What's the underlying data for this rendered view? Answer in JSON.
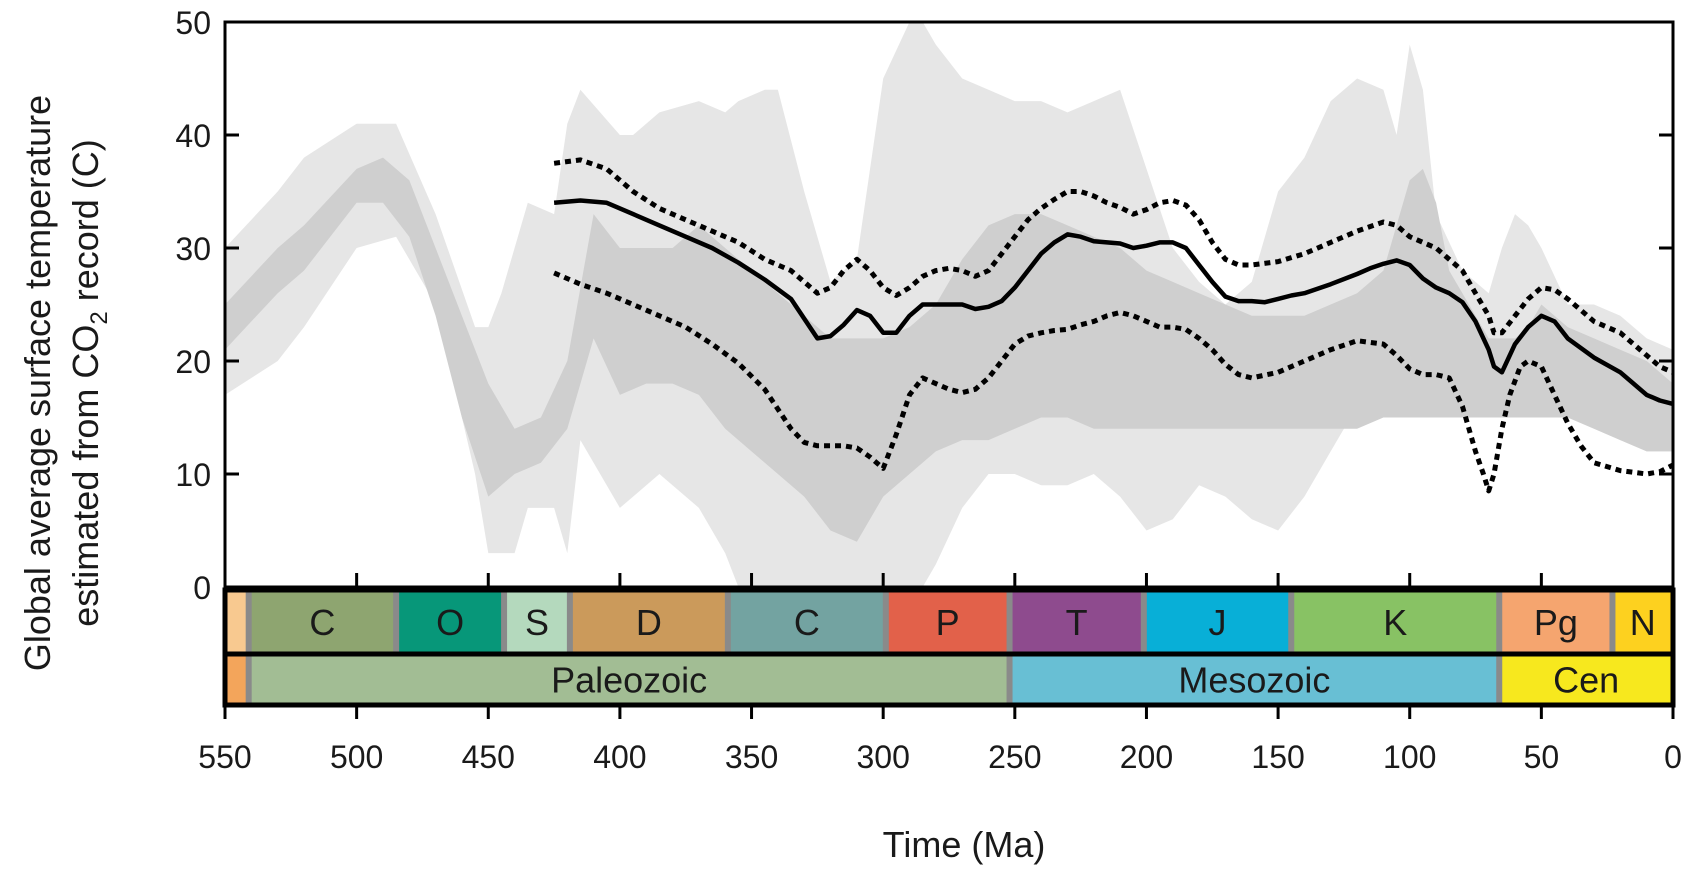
{
  "chart_data": {
    "type": "line",
    "xlabel": "Time (Ma)",
    "ylabel_line1": "Global average surface temperature",
    "ylabel_line2_pre": "estimated from CO",
    "ylabel_line2_sub": "2",
    "ylabel_line2_post": " record (C)",
    "xlim": [
      550,
      0
    ],
    "ylim": [
      0,
      50
    ],
    "x_ticks": [
      550,
      500,
      450,
      400,
      350,
      300,
      250,
      200,
      150,
      100,
      50,
      0
    ],
    "y_ticks": [
      0,
      10,
      20,
      30,
      40,
      50
    ],
    "grid": false,
    "bands": {
      "outer": {
        "color": "#e6e6e6",
        "x": [
          550,
          530,
          520,
          500,
          485,
          470,
          455,
          450,
          445,
          440,
          435,
          425,
          420,
          415,
          400,
          395,
          385,
          370,
          360,
          355,
          345,
          340,
          330,
          320,
          310,
          300,
          290,
          285,
          280,
          270,
          260,
          250,
          240,
          230,
          220,
          210,
          200,
          190,
          180,
          170,
          160,
          150,
          140,
          130,
          120,
          110,
          105,
          100,
          95,
          90,
          80,
          70,
          65,
          60,
          55,
          50,
          40,
          30,
          20,
          10,
          0
        ],
        "upper": [
          30,
          35,
          38,
          41,
          41,
          33,
          23,
          23,
          26,
          30,
          34,
          33,
          41,
          44,
          40,
          40,
          42,
          43,
          42,
          43,
          44,
          44,
          35,
          27,
          29,
          45,
          50,
          50,
          48,
          45,
          44,
          43,
          43,
          42,
          43,
          44,
          37,
          30,
          27,
          25,
          27,
          35,
          38,
          43,
          45,
          44,
          40,
          48,
          44,
          33,
          28,
          26,
          30,
          33,
          32,
          30,
          25,
          25,
          24,
          22,
          21
        ],
        "lower": [
          17,
          20,
          23,
          30,
          31,
          25,
          10,
          3,
          3,
          3,
          7,
          7,
          3,
          13,
          7,
          8,
          10,
          7,
          3,
          0,
          0,
          0,
          0,
          0,
          0,
          0,
          0,
          0,
          2,
          7,
          10,
          10,
          9,
          9,
          10,
          8,
          5,
          6,
          9,
          8,
          6,
          5,
          8,
          12,
          16,
          18,
          20,
          20,
          22,
          20,
          18,
          17,
          15,
          15,
          15,
          15,
          15,
          14,
          13,
          12,
          12
        ]
      },
      "inner": {
        "color": "#cfcfcf",
        "x": [
          550,
          530,
          520,
          500,
          490,
          480,
          470,
          460,
          450,
          440,
          430,
          420,
          410,
          400,
          390,
          380,
          370,
          360,
          350,
          340,
          330,
          320,
          310,
          300,
          290,
          280,
          270,
          260,
          250,
          240,
          230,
          220,
          210,
          200,
          190,
          180,
          170,
          160,
          150,
          140,
          130,
          120,
          110,
          100,
          95,
          90,
          85,
          80,
          75,
          70,
          65,
          60,
          55,
          50,
          45,
          40,
          30,
          20,
          10,
          0
        ],
        "upper": [
          25,
          30,
          32,
          37,
          38,
          36,
          30,
          24,
          18,
          14,
          15,
          20,
          33,
          30,
          30,
          30,
          32,
          30,
          28,
          26,
          24,
          22,
          22,
          22,
          23,
          25,
          29,
          32,
          33,
          33,
          32,
          31,
          30,
          28,
          27,
          26,
          25,
          24,
          24,
          24,
          25,
          26,
          28,
          36,
          37,
          34,
          28,
          26,
          24,
          22,
          22,
          22,
          23,
          25,
          24,
          23,
          22,
          21,
          20,
          18
        ],
        "lower": [
          21,
          26,
          28,
          34,
          34,
          31,
          24,
          15,
          8,
          10,
          11,
          14,
          22,
          17,
          18,
          18,
          17,
          14,
          12,
          10,
          8,
          5,
          4,
          8,
          10,
          12,
          13,
          13,
          14,
          15,
          15,
          14,
          14,
          14,
          14,
          14,
          14,
          14,
          14,
          14,
          14,
          14,
          15,
          15,
          15,
          15,
          15,
          15,
          15,
          15,
          15,
          15,
          15,
          15,
          15,
          15,
          14,
          13,
          12,
          12
        ]
      }
    },
    "series": [
      {
        "style": "solid",
        "x": [
          425,
          415,
          405,
          395,
          385,
          375,
          365,
          355,
          345,
          335,
          325,
          320,
          315,
          310,
          305,
          300,
          295,
          290,
          285,
          280,
          270,
          265,
          260,
          255,
          250,
          245,
          240,
          235,
          230,
          225,
          220,
          215,
          210,
          205,
          200,
          195,
          190,
          185,
          180,
          175,
          170,
          165,
          160,
          155,
          150,
          145,
          140,
          130,
          120,
          115,
          110,
          105,
          100,
          95,
          90,
          85,
          80,
          75,
          70,
          68,
          65,
          60,
          55,
          50,
          45,
          40,
          30,
          20,
          10,
          5,
          0
        ],
        "y": [
          34,
          34.2,
          34,
          33,
          32,
          31,
          30,
          28.7,
          27.2,
          25.5,
          22,
          22.2,
          23.2,
          24.5,
          24,
          22.5,
          22.5,
          24,
          25,
          25,
          25,
          24.6,
          24.8,
          25.3,
          26.5,
          28,
          29.5,
          30.5,
          31.2,
          31,
          30.6,
          30.5,
          30.4,
          30,
          30.2,
          30.5,
          30.5,
          30,
          28.5,
          27,
          25.7,
          25.3,
          25.3,
          25.2,
          25.5,
          25.8,
          26,
          26.8,
          27.7,
          28.2,
          28.6,
          28.9,
          28.5,
          27.3,
          26.5,
          26,
          25.2,
          23.5,
          21,
          19.5,
          19,
          21.5,
          23,
          24,
          23.5,
          22,
          20.3,
          19,
          17,
          16.5,
          16.2
        ]
      },
      {
        "style": "dotted",
        "x": [
          425,
          415,
          405,
          395,
          385,
          375,
          365,
          355,
          345,
          335,
          325,
          320,
          315,
          310,
          305,
          300,
          295,
          290,
          285,
          280,
          275,
          270,
          265,
          260,
          255,
          250,
          245,
          240,
          235,
          230,
          225,
          220,
          215,
          210,
          205,
          200,
          195,
          190,
          185,
          180,
          175,
          170,
          165,
          160,
          150,
          140,
          130,
          120,
          110,
          105,
          100,
          95,
          90,
          85,
          80,
          75,
          70,
          68,
          65,
          60,
          55,
          50,
          45,
          40,
          30,
          20,
          10,
          5,
          0
        ],
        "y": [
          37.5,
          37.8,
          37,
          35,
          33.5,
          32.5,
          31.5,
          30.5,
          29,
          28,
          26,
          26.5,
          28,
          29,
          28,
          26.5,
          25.8,
          26.5,
          27.5,
          28,
          28.2,
          28,
          27.5,
          28,
          29.5,
          31,
          32.5,
          33.5,
          34.3,
          35,
          35,
          34.6,
          34,
          33.6,
          33,
          33.4,
          34,
          34.2,
          33.8,
          32.5,
          30.5,
          29,
          28.5,
          28.5,
          28.8,
          29.5,
          30.5,
          31.5,
          32.3,
          32,
          31,
          30.5,
          30,
          29,
          28,
          26,
          24,
          22.5,
          22.5,
          24,
          25.5,
          26.5,
          26.3,
          25.5,
          23.5,
          22.5,
          20.5,
          19.5,
          19
        ]
      },
      {
        "style": "dotted",
        "x": [
          425,
          415,
          405,
          395,
          385,
          375,
          365,
          355,
          345,
          335,
          330,
          325,
          320,
          315,
          310,
          305,
          300,
          295,
          290,
          285,
          280,
          275,
          270,
          265,
          260,
          255,
          250,
          245,
          240,
          235,
          230,
          225,
          220,
          215,
          210,
          205,
          200,
          195,
          190,
          185,
          180,
          175,
          170,
          165,
          160,
          150,
          140,
          130,
          120,
          110,
          105,
          100,
          95,
          90,
          85,
          80,
          75,
          72,
          70,
          68,
          65,
          62,
          58,
          55,
          50,
          45,
          40,
          35,
          30,
          20,
          10,
          5,
          0
        ],
        "y": [
          27.8,
          26.8,
          26,
          25,
          24,
          23,
          21.5,
          19.8,
          17.5,
          14,
          12.8,
          12.5,
          12.5,
          12.5,
          12.3,
          11.5,
          10.5,
          13.5,
          17,
          18.5,
          18,
          17.5,
          17.2,
          17.5,
          18.5,
          20,
          21.5,
          22.2,
          22.5,
          22.7,
          22.8,
          23.2,
          23.5,
          24,
          24.3,
          24,
          23.5,
          23,
          23,
          22.8,
          22,
          21,
          19.7,
          18.8,
          18.5,
          19,
          20,
          21,
          21.8,
          21.5,
          20.5,
          19.3,
          18.8,
          18.8,
          18.5,
          16,
          12,
          10,
          8.5,
          10,
          14,
          17,
          19.5,
          20,
          19.5,
          17,
          14.5,
          12.5,
          11,
          10.3,
          10,
          10.2,
          10.8
        ]
      }
    ],
    "periods": [
      {
        "label": "",
        "start": 550,
        "end": 541,
        "color": "#f8c990"
      },
      {
        "label": "C",
        "start": 541,
        "end": 485,
        "color": "#8ea570"
      },
      {
        "label": "O",
        "start": 485,
        "end": 444,
        "color": "#079779"
      },
      {
        "label": "S",
        "start": 444,
        "end": 419,
        "color": "#b4d9bd"
      },
      {
        "label": "D",
        "start": 419,
        "end": 359,
        "color": "#cb9a5b"
      },
      {
        "label": "C",
        "start": 359,
        "end": 299,
        "color": "#73a3a1"
      },
      {
        "label": "P",
        "start": 299,
        "end": 252,
        "color": "#e2614a"
      },
      {
        "label": "T",
        "start": 252,
        "end": 201,
        "color": "#8e4b8e"
      },
      {
        "label": "J",
        "start": 201,
        "end": 145,
        "color": "#08afd7"
      },
      {
        "label": "K",
        "start": 145,
        "end": 66,
        "color": "#88c264"
      },
      {
        "label": "Pg",
        "start": 66,
        "end": 23,
        "color": "#f5a56f"
      },
      {
        "label": "N",
        "start": 23,
        "end": 0,
        "color": "#fdd11f"
      }
    ],
    "eras": [
      {
        "label": "",
        "start": 550,
        "end": 541,
        "color": "#f3a55b"
      },
      {
        "label": "Paleozoic",
        "start": 541,
        "end": 252,
        "color": "#a2bd94"
      },
      {
        "label": "Mesozoic",
        "start": 252,
        "end": 66,
        "color": "#68bfd4"
      },
      {
        "label": "Cen",
        "start": 66,
        "end": 0,
        "color": "#f7e81e"
      }
    ],
    "boundary_color": "#8a8a8a"
  }
}
